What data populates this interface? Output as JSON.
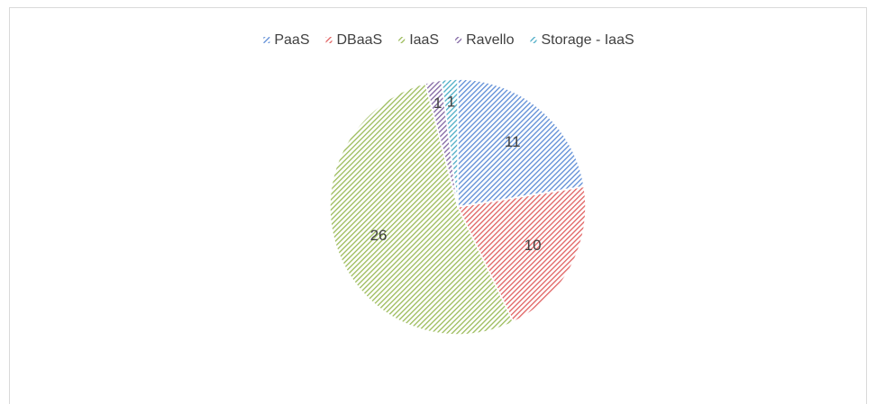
{
  "chart_data": {
    "type": "pie",
    "categories": [
      "PaaS",
      "DBaaS",
      "IaaS",
      "Ravello",
      "Storage - IaaS"
    ],
    "values": [
      11,
      10,
      26,
      1,
      1
    ],
    "colors": [
      "#5b8bd6",
      "#e06060",
      "#9bbb59",
      "#8064a2",
      "#4bacc6"
    ],
    "legend": "top"
  }
}
